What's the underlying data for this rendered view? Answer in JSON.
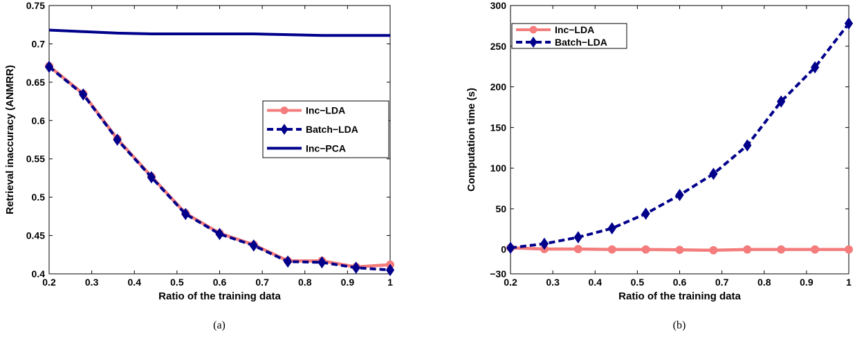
{
  "colors": {
    "inc_lda": "#f47c7c",
    "batch_lda": "#00008b",
    "inc_pca": "#00008b",
    "axis": "#000000"
  },
  "chart_data": [
    {
      "type": "line",
      "caption": "(a)",
      "xlabel": "Ratio of the training data",
      "ylabel": "Retrieval inaccuracy (ANMRR)",
      "xlim": [
        0.2,
        1
      ],
      "ylim": [
        0.4,
        0.75
      ],
      "xticks": [
        0.2,
        0.3,
        0.4,
        0.5,
        0.6,
        0.7,
        0.8,
        0.9,
        1
      ],
      "xtick_labels": [
        "0.2",
        "0.3",
        "0.4",
        "0.5",
        "0.6",
        "0.7",
        "0.8",
        "0.9",
        "1"
      ],
      "yticks": [
        0.4,
        0.45,
        0.5,
        0.55,
        0.6,
        0.65,
        0.7,
        0.75
      ],
      "ytick_labels": [
        "0.4",
        "0.45",
        "0.5",
        "0.55",
        "0.6",
        "0.65",
        "0.7",
        "0.75"
      ],
      "legend_position": "middle-right",
      "grid": false,
      "x": [
        0.2,
        0.28,
        0.36,
        0.44,
        0.52,
        0.6,
        0.68,
        0.76,
        0.84,
        0.92,
        1.0
      ],
      "series": [
        {
          "name": "Inc−LDA",
          "style": "solid",
          "marker": "circle",
          "color_key": "inc_lda",
          "values": [
            0.671,
            0.635,
            0.576,
            0.527,
            0.479,
            0.453,
            0.438,
            0.417,
            0.417,
            0.409,
            0.412
          ]
        },
        {
          "name": "Batch−LDA",
          "style": "dashed",
          "marker": "diamond",
          "color_key": "batch_lda",
          "values": [
            0.67,
            0.634,
            0.575,
            0.526,
            0.478,
            0.452,
            0.437,
            0.416,
            0.415,
            0.408,
            0.405
          ]
        },
        {
          "name": "Inc−PCA",
          "style": "solid",
          "marker": "none",
          "color_key": "inc_pca",
          "values": [
            0.718,
            0.716,
            0.714,
            0.713,
            0.713,
            0.713,
            0.713,
            0.712,
            0.711,
            0.711,
            0.711
          ]
        }
      ]
    },
    {
      "type": "line",
      "caption": "(b)",
      "xlabel": "Ratio of the training data",
      "ylabel": "Computation time (s)",
      "xlim": [
        0.2,
        1
      ],
      "ylim": [
        -30,
        300
      ],
      "xticks": [
        0.2,
        0.3,
        0.4,
        0.5,
        0.6,
        0.7,
        0.8,
        0.9,
        1
      ],
      "xtick_labels": [
        "0.2",
        "0.3",
        "0.4",
        "0.5",
        "0.6",
        "0.7",
        "0.8",
        "0.9",
        "1"
      ],
      "yticks": [
        -30,
        0,
        50,
        100,
        150,
        200,
        250,
        300
      ],
      "ytick_labels": [
        "−30",
        "0",
        "50",
        "100",
        "150",
        "200",
        "250",
        "300"
      ],
      "legend_position": "top-left",
      "grid": false,
      "x": [
        0.2,
        0.28,
        0.36,
        0.44,
        0.52,
        0.6,
        0.68,
        0.76,
        0.84,
        0.92,
        1.0
      ],
      "series": [
        {
          "name": "Inc−LDA",
          "style": "solid",
          "marker": "circle",
          "color_key": "inc_lda",
          "values": [
            2,
            0.5,
            0.5,
            0,
            0,
            -0.5,
            -1,
            0,
            0,
            0,
            0
          ]
        },
        {
          "name": "Batch−LDA",
          "style": "dashed",
          "marker": "diamond",
          "color_key": "batch_lda",
          "values": [
            2,
            7,
            15,
            26,
            44,
            67,
            93,
            128,
            182,
            224,
            278
          ]
        }
      ]
    }
  ]
}
